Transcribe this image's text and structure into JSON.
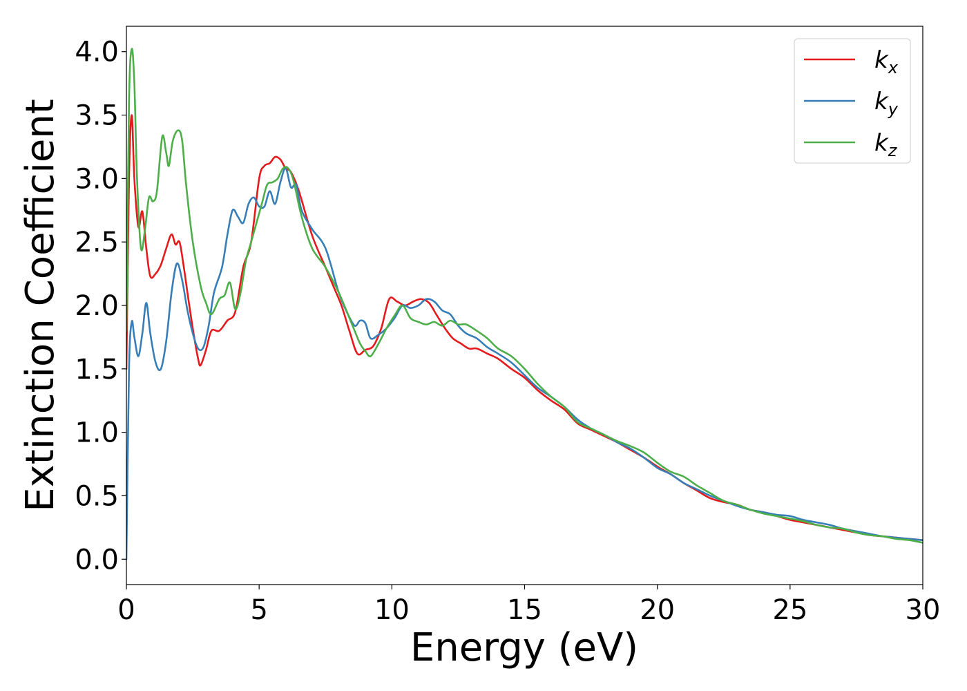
{
  "chart_data": {
    "type": "line",
    "xlabel": "Energy (eV)",
    "ylabel": "Extinction Coefficient",
    "xlim": [
      0,
      30
    ],
    "ylim": [
      -0.2,
      4.2
    ],
    "xticks": [
      0,
      5,
      10,
      15,
      20,
      25,
      30
    ],
    "xtick_labels": [
      "0",
      "5",
      "10",
      "15",
      "20",
      "25",
      "30"
    ],
    "yticks": [
      0.0,
      0.5,
      1.0,
      1.5,
      2.0,
      2.5,
      3.0,
      3.5,
      4.0
    ],
    "ytick_labels": [
      "0.0",
      "0.5",
      "1.0",
      "1.5",
      "2.0",
      "2.5",
      "3.0",
      "3.5",
      "4.0"
    ],
    "grid": false,
    "legend_position": "top-right",
    "series": [
      {
        "name": "k_x",
        "label_base": "k",
        "label_sub": "x",
        "color": "#e41a1c",
        "x": [
          0,
          0.1,
          0.2,
          0.3,
          0.45,
          0.6,
          0.75,
          0.9,
          1.1,
          1.3,
          1.5,
          1.7,
          1.85,
          2.0,
          2.15,
          2.3,
          2.5,
          2.7,
          2.8,
          3.0,
          3.2,
          3.5,
          3.8,
          4.1,
          4.4,
          4.7,
          5.0,
          5.2,
          5.4,
          5.6,
          5.8,
          6.0,
          6.2,
          6.5,
          7.0,
          7.5,
          7.8,
          8.1,
          8.4,
          8.7,
          9.0,
          9.3,
          9.6,
          9.9,
          10.2,
          10.5,
          10.8,
          11.1,
          11.4,
          11.7,
          12.0,
          12.3,
          12.6,
          12.9,
          13.2,
          13.6,
          14.0,
          14.5,
          15.0,
          15.5,
          16.0,
          16.5,
          17.0,
          17.5,
          18.0,
          18.5,
          19.0,
          19.5,
          20.0,
          20.5,
          21.0,
          21.5,
          22.0,
          22.5,
          23.0,
          23.5,
          24.0,
          24.5,
          25.0,
          25.5,
          26.0,
          26.5,
          27.0,
          27.5,
          28.0,
          28.5,
          29.0,
          29.5,
          30.0
        ],
        "y": [
          1.5,
          3.0,
          3.5,
          3.0,
          2.62,
          2.74,
          2.45,
          2.23,
          2.25,
          2.32,
          2.45,
          2.56,
          2.48,
          2.5,
          2.32,
          2.1,
          1.82,
          1.58,
          1.53,
          1.65,
          1.8,
          1.8,
          1.88,
          1.95,
          2.3,
          2.5,
          3.0,
          3.1,
          3.12,
          3.17,
          3.15,
          3.08,
          3.05,
          2.9,
          2.55,
          2.3,
          2.15,
          2.0,
          1.8,
          1.62,
          1.65,
          1.68,
          1.82,
          2.05,
          2.03,
          2.0,
          2.03,
          2.05,
          2.02,
          1.92,
          1.82,
          1.74,
          1.7,
          1.66,
          1.66,
          1.62,
          1.58,
          1.5,
          1.43,
          1.33,
          1.25,
          1.18,
          1.07,
          1.02,
          0.97,
          0.92,
          0.86,
          0.8,
          0.73,
          0.67,
          0.6,
          0.54,
          0.48,
          0.45,
          0.43,
          0.39,
          0.37,
          0.34,
          0.31,
          0.29,
          0.27,
          0.25,
          0.23,
          0.21,
          0.19,
          0.18,
          0.17,
          0.16,
          0.15
        ]
      },
      {
        "name": "k_y",
        "label_base": "k",
        "label_sub": "y",
        "color": "#377eb8",
        "x": [
          0,
          0.1,
          0.2,
          0.3,
          0.45,
          0.6,
          0.75,
          0.9,
          1.1,
          1.3,
          1.5,
          1.7,
          1.9,
          2.1,
          2.3,
          2.5,
          2.7,
          2.9,
          3.1,
          3.3,
          3.6,
          3.8,
          4.0,
          4.2,
          4.4,
          4.6,
          4.8,
          5.0,
          5.2,
          5.4,
          5.6,
          5.8,
          6.0,
          6.2,
          6.4,
          6.6,
          7.0,
          7.5,
          8.0,
          8.3,
          8.6,
          8.8,
          9.0,
          9.2,
          9.5,
          9.8,
          10.1,
          10.4,
          10.7,
          11.0,
          11.3,
          11.6,
          11.9,
          12.2,
          12.5,
          12.8,
          13.2,
          13.6,
          14.0,
          14.5,
          15.0,
          15.5,
          16.0,
          16.5,
          17.0,
          17.5,
          18.0,
          18.5,
          19.0,
          19.5,
          20.0,
          20.5,
          21.0,
          21.5,
          22.0,
          22.5,
          23.0,
          23.5,
          24.0,
          24.5,
          25.0,
          25.5,
          26.0,
          26.5,
          27.0,
          27.5,
          28.0,
          28.5,
          29.0,
          29.5,
          30.0
        ],
        "y": [
          0.0,
          1.5,
          1.87,
          1.75,
          1.6,
          1.78,
          2.02,
          1.78,
          1.55,
          1.5,
          1.72,
          2.1,
          2.33,
          2.2,
          1.96,
          1.78,
          1.66,
          1.67,
          1.84,
          2.1,
          2.3,
          2.55,
          2.75,
          2.7,
          2.65,
          2.8,
          2.85,
          2.78,
          2.78,
          2.9,
          2.8,
          2.97,
          3.08,
          2.93,
          2.95,
          2.75,
          2.6,
          2.45,
          2.1,
          1.95,
          1.84,
          1.88,
          1.86,
          1.74,
          1.77,
          1.82,
          1.9,
          2.0,
          1.98,
          2.0,
          2.05,
          2.03,
          1.96,
          1.93,
          1.84,
          1.78,
          1.74,
          1.67,
          1.62,
          1.55,
          1.45,
          1.35,
          1.28,
          1.2,
          1.1,
          1.03,
          0.98,
          0.92,
          0.87,
          0.8,
          0.72,
          0.67,
          0.6,
          0.55,
          0.5,
          0.46,
          0.42,
          0.39,
          0.37,
          0.35,
          0.34,
          0.31,
          0.29,
          0.27,
          0.24,
          0.22,
          0.2,
          0.18,
          0.17,
          0.16,
          0.15
        ]
      },
      {
        "name": "k_z",
        "label_base": "k",
        "label_sub": "z",
        "color": "#4daf4a",
        "x": [
          0,
          0.1,
          0.2,
          0.3,
          0.4,
          0.55,
          0.7,
          0.85,
          1.0,
          1.15,
          1.35,
          1.5,
          1.6,
          1.75,
          1.95,
          2.1,
          2.25,
          2.5,
          2.8,
          3.0,
          3.2,
          3.5,
          3.7,
          3.9,
          4.1,
          4.3,
          4.5,
          4.7,
          4.9,
          5.1,
          5.3,
          5.5,
          5.7,
          5.9,
          6.1,
          6.3,
          6.6,
          7.0,
          7.5,
          8.0,
          8.5,
          8.8,
          9.0,
          9.2,
          9.5,
          9.8,
          10.1,
          10.4,
          10.7,
          11.0,
          11.3,
          11.6,
          11.9,
          12.2,
          12.5,
          12.8,
          13.2,
          13.6,
          14.0,
          14.5,
          15.0,
          15.5,
          16.0,
          16.5,
          17.0,
          17.5,
          18.0,
          18.5,
          19.0,
          19.5,
          20.0,
          20.5,
          21.0,
          21.5,
          22.0,
          22.5,
          23.0,
          23.5,
          24.0,
          24.5,
          25.0,
          25.5,
          26.0,
          26.5,
          27.0,
          27.5,
          28.0,
          28.5,
          29.0,
          29.5,
          30.0
        ],
        "y": [
          1.8,
          3.6,
          4.02,
          3.75,
          3.0,
          2.45,
          2.6,
          2.85,
          2.82,
          2.9,
          3.33,
          3.2,
          3.1,
          3.3,
          3.38,
          3.3,
          2.95,
          2.5,
          2.15,
          2.02,
          1.93,
          2.05,
          2.08,
          2.18,
          1.97,
          2.1,
          2.35,
          2.5,
          2.65,
          2.8,
          2.95,
          2.97,
          3.0,
          3.08,
          3.08,
          2.98,
          2.7,
          2.45,
          2.3,
          2.1,
          1.85,
          1.7,
          1.64,
          1.6,
          1.7,
          1.82,
          1.92,
          2.0,
          1.9,
          1.87,
          1.85,
          1.87,
          1.84,
          1.88,
          1.85,
          1.85,
          1.8,
          1.74,
          1.66,
          1.6,
          1.5,
          1.38,
          1.28,
          1.2,
          1.08,
          1.03,
          0.98,
          0.93,
          0.89,
          0.84,
          0.76,
          0.69,
          0.65,
          0.58,
          0.52,
          0.46,
          0.43,
          0.39,
          0.36,
          0.34,
          0.32,
          0.3,
          0.27,
          0.25,
          0.24,
          0.21,
          0.19,
          0.18,
          0.16,
          0.15,
          0.13
        ]
      }
    ]
  }
}
